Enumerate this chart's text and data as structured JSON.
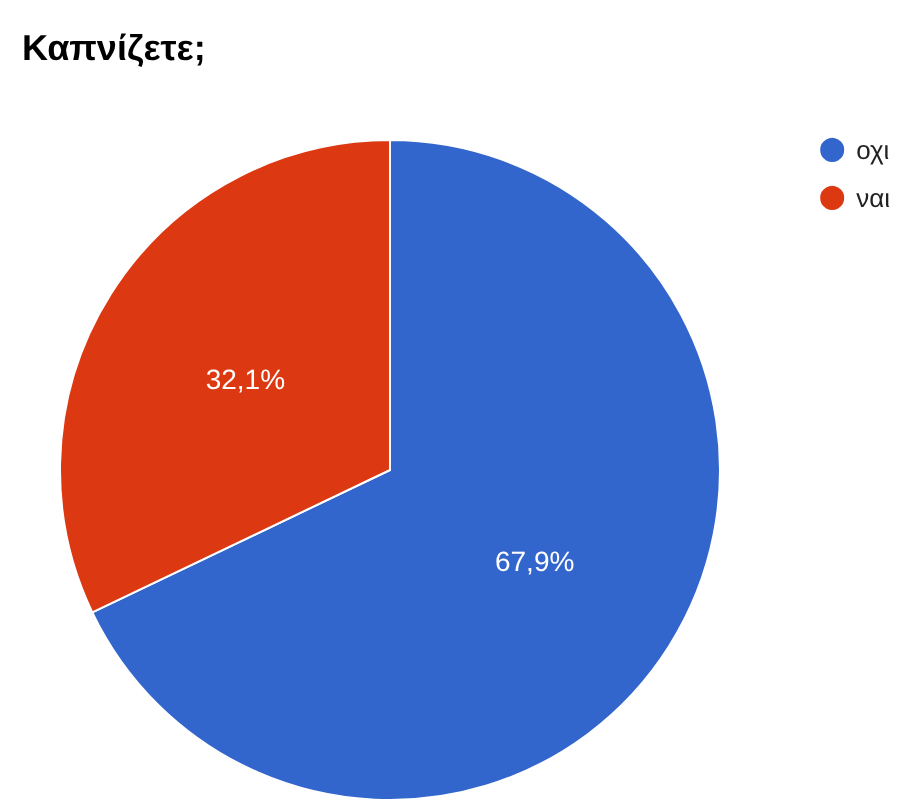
{
  "chart_data": {
    "type": "pie",
    "title": "Καπνίζετε;",
    "categories": [
      "οχι",
      "ναι"
    ],
    "values": [
      67.9,
      32.1
    ],
    "colors": [
      "#3366cc",
      "#dc3912"
    ],
    "value_labels": [
      "67,9%",
      "32,1%"
    ],
    "legend": "top right"
  }
}
